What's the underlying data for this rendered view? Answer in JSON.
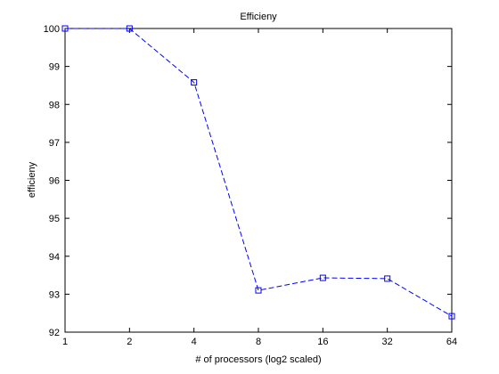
{
  "chart_data": {
    "type": "line",
    "title": "Efficieny",
    "xlabel": "# of processors (log2 scaled)",
    "ylabel": "efficieny",
    "x_scale": "log2",
    "x_tick_labels": [
      "1",
      "2",
      "4",
      "8",
      "16",
      "32",
      "64"
    ],
    "x": [
      1,
      2,
      4,
      8,
      16,
      32,
      64
    ],
    "xlim": [
      1,
      64
    ],
    "ylim": [
      92,
      100
    ],
    "y_ticks": [
      92,
      93,
      94,
      95,
      96,
      97,
      98,
      99,
      100
    ],
    "grid": false,
    "series": [
      {
        "values": [
          100,
          100,
          98.58,
          93.1,
          93.43,
          93.41,
          92.42
        ],
        "color": "#0000ff",
        "line_style": "dashed",
        "marker": "square"
      }
    ]
  }
}
